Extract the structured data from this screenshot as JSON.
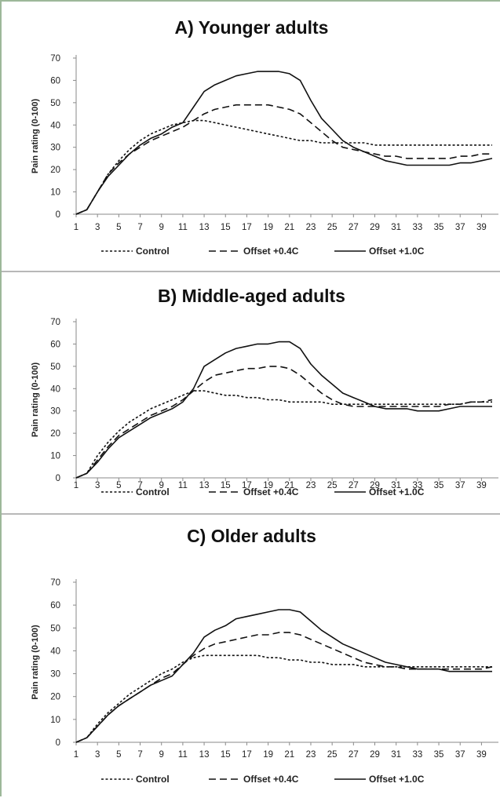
{
  "chart_data": [
    {
      "type": "line",
      "title": "A) Younger adults",
      "ylabel": "Pain rating (0-100)",
      "xlabel": "",
      "ylim": [
        0,
        70
      ],
      "yticks": [
        "0",
        "10",
        "20",
        "30",
        "40",
        "50",
        "60",
        "70"
      ],
      "xticks": [
        "1",
        "3",
        "5",
        "7",
        "9",
        "11",
        "13",
        "15",
        "17",
        "19",
        "21",
        "23",
        "25",
        "27",
        "29",
        "31",
        "33",
        "35",
        "37",
        "39"
      ],
      "legend_position": "bottom",
      "x": [
        1,
        2,
        3,
        4,
        5,
        6,
        7,
        8,
        9,
        10,
        11,
        12,
        13,
        14,
        15,
        16,
        17,
        18,
        19,
        20,
        21,
        22,
        23,
        24,
        25,
        26,
        27,
        28,
        29,
        30,
        31,
        32,
        33,
        34,
        35,
        36,
        37,
        38,
        39,
        40
      ],
      "series": [
        {
          "name": "Control",
          "dash": "dotted",
          "values": [
            0,
            2,
            10,
            18,
            24,
            29,
            33,
            36,
            38,
            40,
            41,
            42,
            42,
            41,
            40,
            39,
            38,
            37,
            36,
            35,
            34,
            33,
            33,
            32,
            32,
            32,
            32,
            32,
            31,
            31,
            31,
            31,
            31,
            31,
            31,
            31,
            31,
            31,
            31,
            31
          ]
        },
        {
          "name": "Offset +0.4C",
          "dash": "dashed",
          "values": [
            0,
            2,
            10,
            18,
            23,
            27,
            30,
            33,
            35,
            37,
            39,
            42,
            45,
            47,
            48,
            49,
            49,
            49,
            49,
            48,
            47,
            45,
            41,
            37,
            33,
            30,
            29,
            28,
            27,
            26,
            26,
            25,
            25,
            25,
            25,
            25,
            26,
            26,
            27,
            27
          ]
        },
        {
          "name": "Offset +1.0C",
          "dash": "solid",
          "values": [
            0,
            2,
            10,
            17,
            22,
            27,
            31,
            34,
            36,
            39,
            41,
            48,
            55,
            58,
            60,
            62,
            63,
            64,
            64,
            64,
            63,
            60,
            51,
            43,
            38,
            33,
            30,
            28,
            26,
            24,
            23,
            22,
            22,
            22,
            22,
            22,
            23,
            23,
            24,
            25
          ]
        }
      ]
    },
    {
      "type": "line",
      "title": "B) Middle-aged adults",
      "ylabel": "Pain rating (0-100)",
      "xlabel": "",
      "ylim": [
        0,
        70
      ],
      "yticks": [
        "0",
        "10",
        "20",
        "30",
        "40",
        "50",
        "60",
        "70"
      ],
      "xticks": [
        "1",
        "3",
        "5",
        "7",
        "9",
        "11",
        "13",
        "15",
        "17",
        "19",
        "21",
        "23",
        "25",
        "27",
        "29",
        "31",
        "33",
        "35",
        "37",
        "39"
      ],
      "legend_position": "bottom",
      "x": [
        1,
        2,
        3,
        4,
        5,
        6,
        7,
        8,
        9,
        10,
        11,
        12,
        13,
        14,
        15,
        16,
        17,
        18,
        19,
        20,
        21,
        22,
        23,
        24,
        25,
        26,
        27,
        28,
        29,
        30,
        31,
        32,
        33,
        34,
        35,
        36,
        37,
        38,
        39,
        40
      ],
      "series": [
        {
          "name": "Control",
          "dash": "dotted",
          "values": [
            0,
            2,
            10,
            16,
            21,
            25,
            28,
            31,
            33,
            35,
            37,
            39,
            39,
            38,
            37,
            37,
            36,
            36,
            35,
            35,
            34,
            34,
            34,
            34,
            33,
            33,
            33,
            33,
            33,
            33,
            33,
            33,
            33,
            33,
            33,
            33,
            33,
            34,
            34,
            34
          ]
        },
        {
          "name": "Offset +0.4C",
          "dash": "dashed",
          "values": [
            0,
            2,
            8,
            14,
            19,
            22,
            25,
            28,
            30,
            32,
            35,
            39,
            43,
            46,
            47,
            48,
            49,
            49,
            50,
            50,
            49,
            46,
            42,
            38,
            35,
            33,
            32,
            32,
            32,
            32,
            32,
            32,
            32,
            32,
            32,
            33,
            33,
            34,
            34,
            35
          ]
        },
        {
          "name": "Offset +1.0C",
          "dash": "solid",
          "values": [
            0,
            2,
            7,
            13,
            18,
            21,
            24,
            27,
            29,
            31,
            34,
            40,
            50,
            53,
            56,
            58,
            59,
            60,
            60,
            61,
            61,
            58,
            51,
            46,
            42,
            38,
            36,
            34,
            32,
            31,
            31,
            31,
            30,
            30,
            30,
            31,
            32,
            32,
            32,
            32
          ]
        }
      ]
    },
    {
      "type": "line",
      "title": "C) Older adults",
      "ylabel": "Pain rating (0-100)",
      "xlabel": "",
      "ylim": [
        0,
        70
      ],
      "yticks": [
        "0",
        "10",
        "20",
        "30",
        "40",
        "50",
        "60",
        "70"
      ],
      "xticks": [
        "1",
        "3",
        "5",
        "7",
        "9",
        "11",
        "13",
        "15",
        "17",
        "19",
        "21",
        "23",
        "25",
        "27",
        "29",
        "31",
        "33",
        "35",
        "37",
        "39"
      ],
      "legend_position": "bottom",
      "x": [
        1,
        2,
        3,
        4,
        5,
        6,
        7,
        8,
        9,
        10,
        11,
        12,
        13,
        14,
        15,
        16,
        17,
        18,
        19,
        20,
        21,
        22,
        23,
        24,
        25,
        26,
        27,
        28,
        29,
        30,
        31,
        32,
        33,
        34,
        35,
        36,
        37,
        38,
        39,
        40
      ],
      "series": [
        {
          "name": "Control",
          "dash": "dotted",
          "values": [
            0,
            2,
            8,
            13,
            17,
            21,
            24,
            27,
            30,
            32,
            35,
            37,
            38,
            38,
            38,
            38,
            38,
            38,
            37,
            37,
            36,
            36,
            35,
            35,
            34,
            34,
            34,
            33,
            33,
            33,
            33,
            33,
            33,
            33,
            33,
            33,
            33,
            33,
            33,
            33
          ]
        },
        {
          "name": "Offset +0.4C",
          "dash": "dashed",
          "values": [
            0,
            2,
            7,
            12,
            16,
            19,
            22,
            25,
            28,
            30,
            34,
            38,
            41,
            43,
            44,
            45,
            46,
            47,
            47,
            48,
            48,
            47,
            45,
            43,
            41,
            39,
            37,
            35,
            34,
            33,
            33,
            32,
            32,
            32,
            32,
            32,
            32,
            32,
            32,
            33
          ]
        },
        {
          "name": "Offset +1.0C",
          "dash": "solid",
          "values": [
            0,
            2,
            7,
            12,
            16,
            19,
            22,
            25,
            27,
            29,
            34,
            39,
            46,
            49,
            51,
            54,
            55,
            56,
            57,
            58,
            58,
            57,
            53,
            49,
            46,
            43,
            41,
            39,
            37,
            35,
            34,
            33,
            32,
            32,
            32,
            31,
            31,
            31,
            31,
            31
          ]
        }
      ]
    }
  ]
}
